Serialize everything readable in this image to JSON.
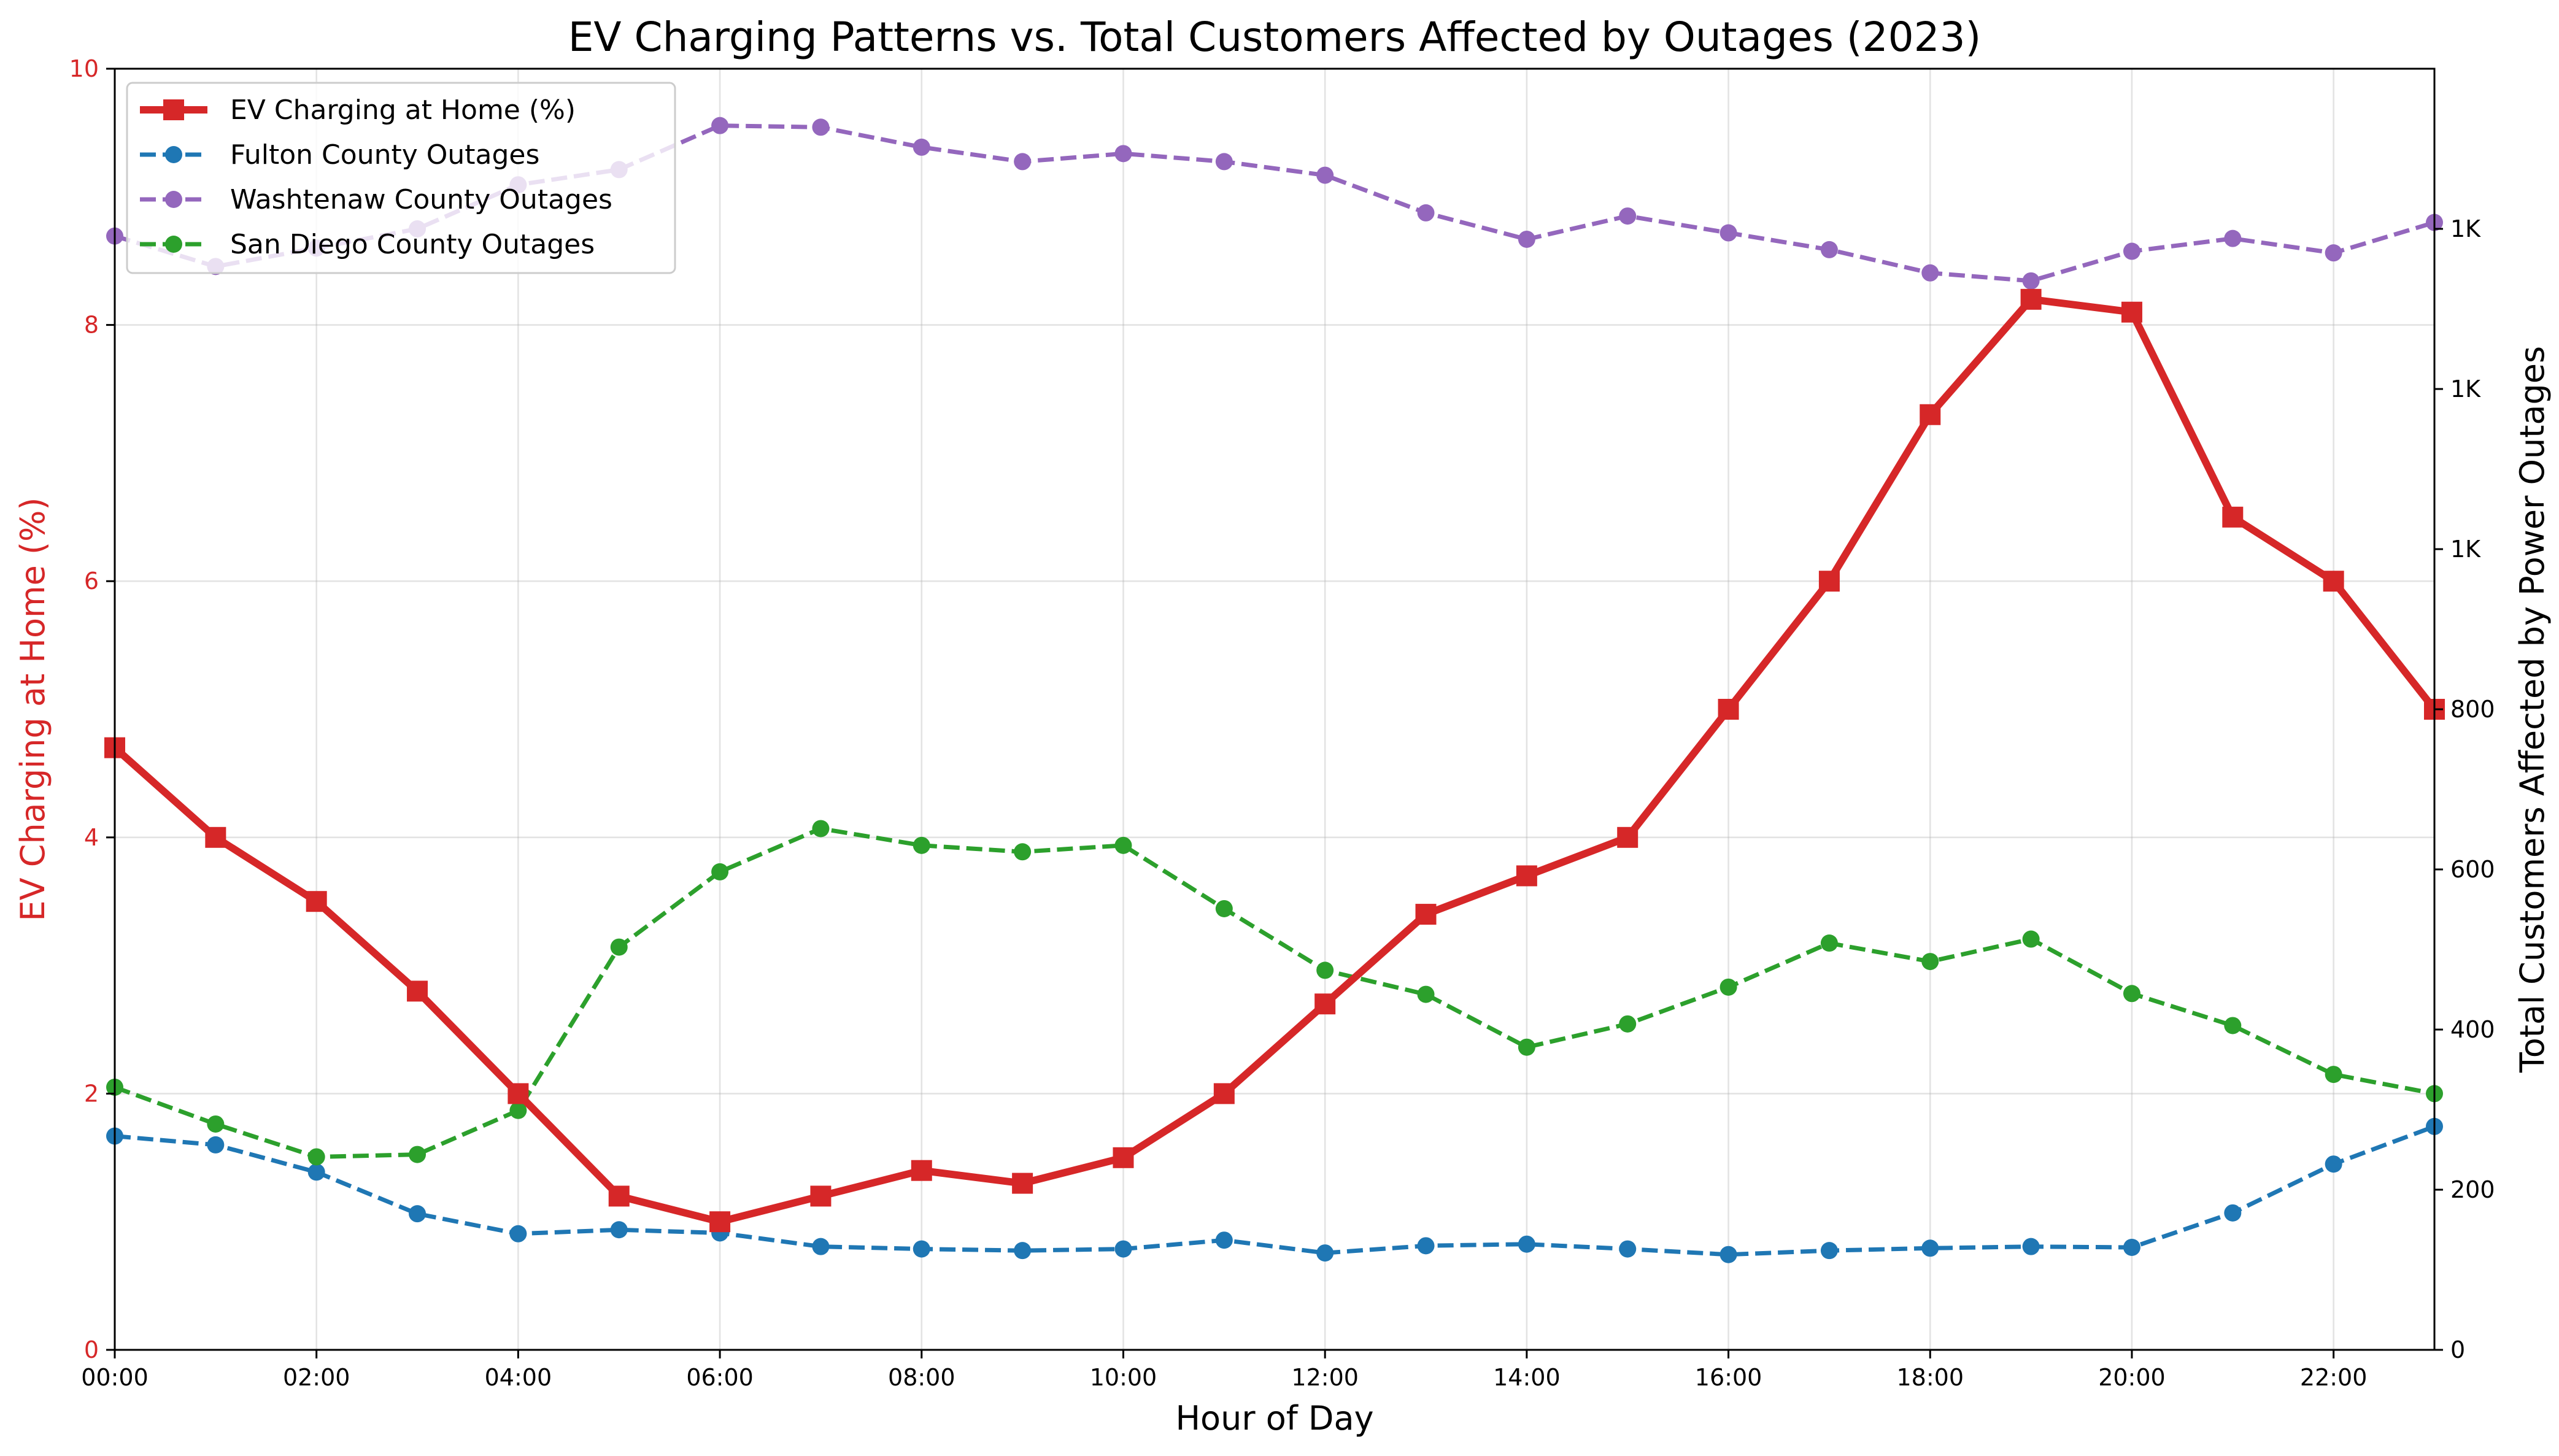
{
  "chart_data": {
    "type": "line",
    "title": "EV Charging Patterns vs. Total Customers Affected by Outages (2023)",
    "xlabel": "Hour of Day",
    "ylabel_left": "EV Charging at Home (%)",
    "ylabel_right": "Total Customers Affected by Power Outages",
    "categories": [
      "00:00",
      "01:00",
      "02:00",
      "03:00",
      "04:00",
      "05:00",
      "06:00",
      "07:00",
      "08:00",
      "09:00",
      "10:00",
      "11:00",
      "12:00",
      "13:00",
      "14:00",
      "15:00",
      "16:00",
      "17:00",
      "18:00",
      "19:00",
      "20:00",
      "21:00",
      "22:00",
      "23:00"
    ],
    "x_tick_labels": [
      "00:00",
      "02:00",
      "04:00",
      "06:00",
      "08:00",
      "10:00",
      "12:00",
      "14:00",
      "16:00",
      "18:00",
      "20:00",
      "22:00"
    ],
    "ylim_left": [
      0,
      10
    ],
    "y_ticks_left": [
      "0",
      "2",
      "4",
      "6",
      "8",
      "10"
    ],
    "ylim_right": [
      0,
      1600
    ],
    "y_ticks_right": [
      {
        "value": 0,
        "label": "0"
      },
      {
        "value": 200,
        "label": "200"
      },
      {
        "value": 400,
        "label": "400"
      },
      {
        "value": 600,
        "label": "600"
      },
      {
        "value": 800,
        "label": "800"
      },
      {
        "value": 1000,
        "label": "1K"
      },
      {
        "value": 1200,
        "label": "1K"
      },
      {
        "value": 1400,
        "label": "1K"
      }
    ],
    "grid": true,
    "legend_position": "top-left",
    "left_axis_color": "#d62728",
    "series": [
      {
        "name": "EV Charging at Home (%)",
        "axis": "left",
        "color": "#d62728",
        "marker": "square",
        "linestyle": "solid",
        "values": [
          4.7,
          4.0,
          3.5,
          2.8,
          2.0,
          1.2,
          1.0,
          1.2,
          1.4,
          1.3,
          1.5,
          2.0,
          2.7,
          3.4,
          3.7,
          4.0,
          5.0,
          6.0,
          7.3,
          8.2,
          8.1,
          6.5,
          6.0,
          5.0
        ]
      },
      {
        "name": "Fulton County Outages",
        "axis": "right",
        "color": "#1f77b4",
        "marker": "circle",
        "linestyle": "dashed",
        "values": [
          267,
          256,
          222,
          170,
          145,
          150,
          146,
          129,
          126,
          124,
          126,
          137,
          121,
          130,
          132,
          126,
          119,
          124,
          127,
          129,
          128,
          171,
          232,
          279
        ]
      },
      {
        "name": "Washtenaw County Outages",
        "axis": "right",
        "color": "#9467bd",
        "marker": "circle",
        "linestyle": "dashed",
        "values": [
          1391,
          1353,
          1376,
          1400,
          1455,
          1474,
          1529,
          1527,
          1502,
          1484,
          1494,
          1484,
          1467,
          1420,
          1387,
          1416,
          1395,
          1374,
          1345,
          1335,
          1372,
          1388,
          1370,
          1408
        ]
      },
      {
        "name": "San Diego County Outages",
        "axis": "right",
        "color": "#2ca02c",
        "marker": "circle",
        "linestyle": "dashed",
        "values": [
          328,
          282,
          241,
          244,
          299,
          503,
          597,
          651,
          630,
          622,
          630,
          551,
          474,
          444,
          378,
          407,
          453,
          508,
          485,
          513,
          445,
          405,
          344,
          320
        ]
      }
    ]
  }
}
